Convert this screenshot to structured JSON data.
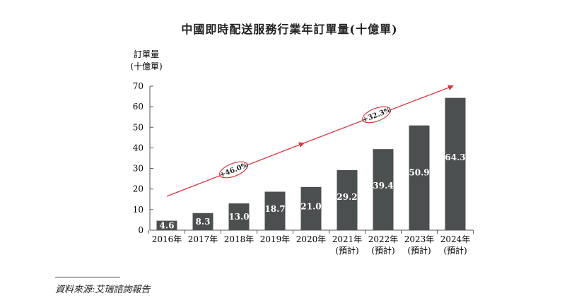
{
  "chart_data": {
    "type": "bar",
    "title": "中國即時配送服務行業年訂單量(十億單)",
    "ylabel_lines": [
      "訂單量",
      "(十億單)"
    ],
    "categories": [
      [
        "2016年"
      ],
      [
        "2017年"
      ],
      [
        "2018年"
      ],
      [
        "2019年"
      ],
      [
        "2020年"
      ],
      [
        "2021年",
        "(預計)"
      ],
      [
        "2022年",
        "(預計)"
      ],
      [
        "2023年",
        "(預計)"
      ],
      [
        "2024年",
        "(預計)"
      ]
    ],
    "values": [
      4.6,
      8.3,
      13.0,
      18.7,
      21.0,
      29.2,
      39.4,
      50.9,
      64.3
    ],
    "value_labels": [
      "4.6",
      "8.3",
      "13.0",
      "18.7",
      "21.0",
      "29.2",
      "39.4",
      "50.9",
      "64.3"
    ],
    "ylim": [
      0,
      70
    ],
    "yticks": [
      0,
      10,
      20,
      30,
      40,
      50,
      60,
      70
    ],
    "bar_color": "#4b4f50",
    "trend_color": "#d9363e",
    "annotations": [
      {
        "text": "+46.0%",
        "from_index": 0,
        "to_index": 4
      },
      {
        "text": "+32.3%",
        "from_index": 4,
        "to_index": 8
      }
    ]
  },
  "source": "資料來源:艾瑞諮詢報告"
}
